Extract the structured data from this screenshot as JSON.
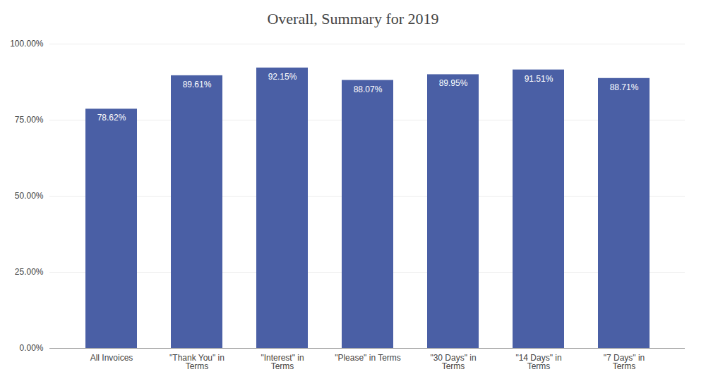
{
  "chart_data": {
    "type": "bar",
    "title": "Overall, Summary for 2019",
    "categories": [
      "All Invoices",
      "\"Thank You\" in\nTerms",
      "\"Interest\" in\nTerms",
      "\"Please\" in Terms",
      "\"30 Days\" in\nTerms",
      "\"14 Days\" in\nTerms",
      "\"7 Days\" in\nTerms"
    ],
    "values": [
      78.62,
      89.61,
      92.15,
      88.07,
      89.95,
      91.51,
      88.71
    ],
    "value_labels": [
      "78.62%",
      "89.61%",
      "92.15%",
      "88.07%",
      "89.95%",
      "91.51%",
      "88.71%"
    ],
    "data_labels": true,
    "color": "#4a5fa5",
    "ylim": [
      0,
      100
    ],
    "yticks": [
      {
        "value": 0,
        "label": "0.00%"
      },
      {
        "value": 25,
        "label": "25.00%"
      },
      {
        "value": 50,
        "label": "50.00%"
      },
      {
        "value": 75,
        "label": "75.00%"
      },
      {
        "value": 100,
        "label": "100.00%"
      }
    ],
    "grid": true
  }
}
